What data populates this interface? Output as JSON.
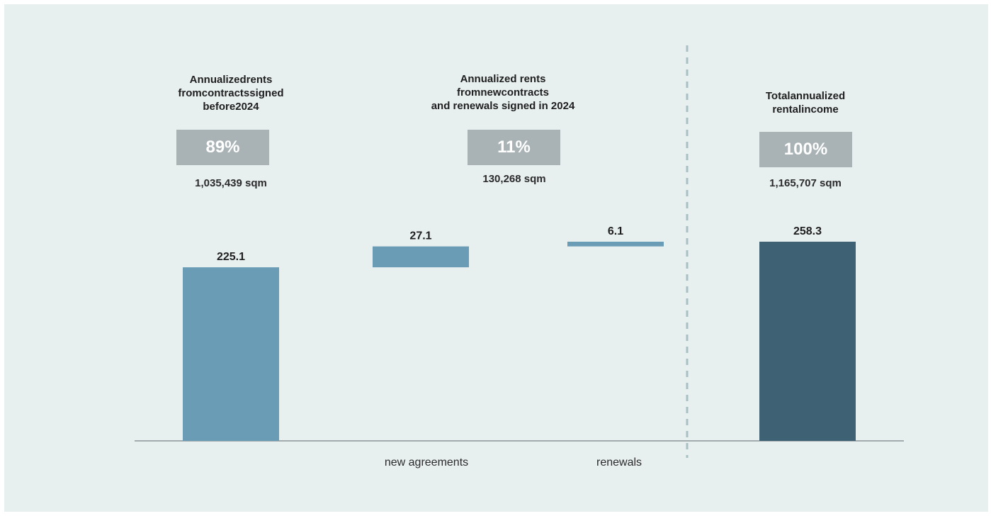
{
  "colors": {
    "background": "#e8efef",
    "bar_light": "#6a9db5",
    "bar_dark": "#3e6273",
    "badge": "#a9b3b6",
    "baseline": "#8a9598",
    "separator": "#a9c1c4"
  },
  "groups": [
    {
      "heading": [
        "Annualizedrents",
        "fromcontractssigned",
        "before2024"
      ],
      "percent": "89%",
      "area": "1,035,439 sqm"
    },
    {
      "heading": [
        "Annualized rents",
        "fromnewcontracts",
        "and renewals signed in 2024"
      ],
      "percent": "11%",
      "area": "130,268 sqm"
    },
    {
      "heading": [
        "Totalannualized",
        "rentalincome"
      ],
      "percent": "100%",
      "area": "1,165,707 sqm"
    }
  ],
  "chart_data": {
    "type": "bar",
    "subtype": "waterfall",
    "categories": [
      "",
      "new agreements",
      "renewals",
      ""
    ],
    "values": [
      225.1,
      27.1,
      6.1,
      258.3
    ],
    "bases": [
      0,
      225.1,
      252.2,
      0
    ],
    "labels": [
      "225.1",
      "27.1",
      "6.1",
      "258.3"
    ],
    "bar_colors": [
      "#6a9db5",
      "#6a9db5",
      "#6a9db5",
      "#3e6273"
    ],
    "ylim": [
      0,
      258.3
    ],
    "grid": false,
    "legend": "none"
  }
}
